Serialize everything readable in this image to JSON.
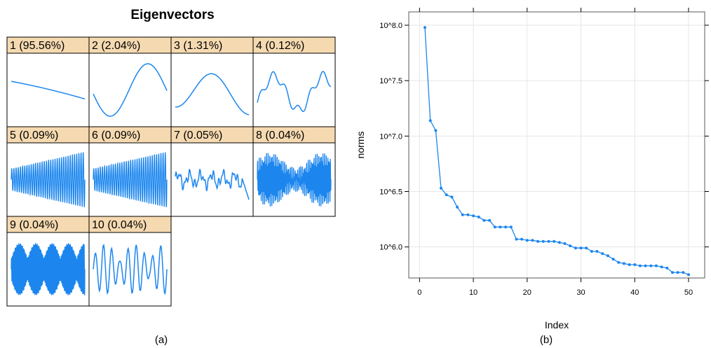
{
  "colors": {
    "line": "#1c86ee",
    "strip": "#f5d9b0",
    "border": "#000000",
    "grid": "#e6e6e6",
    "plot_border": "#5a5a5a"
  },
  "chart_data": [
    {
      "type": "line",
      "title": "Eigenvectors",
      "caption": "(a)",
      "layout": "small-multiples 4 columns x 3 rows",
      "axes": "none",
      "panels": [
        {
          "label": "1 (95.56%)",
          "shape": "decreasing"
        },
        {
          "label": "2 (2.04%)",
          "shape": "sine-valley-peak"
        },
        {
          "label": "3 (1.31%)",
          "shape": "single-peak"
        },
        {
          "label": "4 (0.12%)",
          "shape": "double-peak"
        },
        {
          "label": "5 (0.09%)",
          "shape": "oscillation-fan"
        },
        {
          "label": "6 (0.09%)",
          "shape": "oscillation-fan"
        },
        {
          "label": "7 (0.05%)",
          "shape": "noisy-flat-drop"
        },
        {
          "label": "8 (0.04%)",
          "shape": "dense-noise"
        },
        {
          "label": "9 (0.04%)",
          "shape": "dense-beats"
        },
        {
          "label": "10 (0.04%)",
          "shape": "beat-oscillation"
        }
      ]
    },
    {
      "type": "line",
      "caption": "(b)",
      "xlabel": "Index",
      "ylabel": "norms",
      "y_scale": "log10",
      "xlim": [
        -2,
        53
      ],
      "ylim": [
        5.72,
        8.12
      ],
      "x_ticks": [
        0,
        10,
        20,
        30,
        40,
        50
      ],
      "y_ticks": [
        6.0,
        6.5,
        7.0,
        7.5,
        8.0
      ],
      "y_tick_labels": [
        "10^6.0",
        "10^6.5",
        "10^7.0",
        "10^7.5",
        "10^8.0"
      ],
      "grid": true,
      "markers": true,
      "x": [
        1,
        2,
        3,
        4,
        5,
        6,
        7,
        8,
        9,
        10,
        11,
        12,
        13,
        14,
        15,
        16,
        17,
        18,
        19,
        20,
        21,
        22,
        23,
        24,
        25,
        26,
        27,
        28,
        29,
        30,
        31,
        32,
        33,
        34,
        35,
        36,
        37,
        38,
        39,
        40,
        41,
        42,
        43,
        44,
        45,
        46,
        47,
        48,
        49,
        50
      ],
      "y": [
        7.98,
        7.14,
        7.05,
        6.53,
        6.47,
        6.45,
        6.36,
        6.29,
        6.29,
        6.28,
        6.27,
        6.24,
        6.24,
        6.18,
        6.18,
        6.18,
        6.18,
        6.07,
        6.07,
        6.06,
        6.06,
        6.05,
        6.05,
        6.05,
        6.05,
        6.04,
        6.03,
        6.01,
        5.99,
        5.99,
        5.99,
        5.96,
        5.96,
        5.94,
        5.92,
        5.89,
        5.86,
        5.85,
        5.84,
        5.84,
        5.83,
        5.83,
        5.83,
        5.83,
        5.82,
        5.81,
        5.77,
        5.77,
        5.77,
        5.75
      ]
    }
  ]
}
